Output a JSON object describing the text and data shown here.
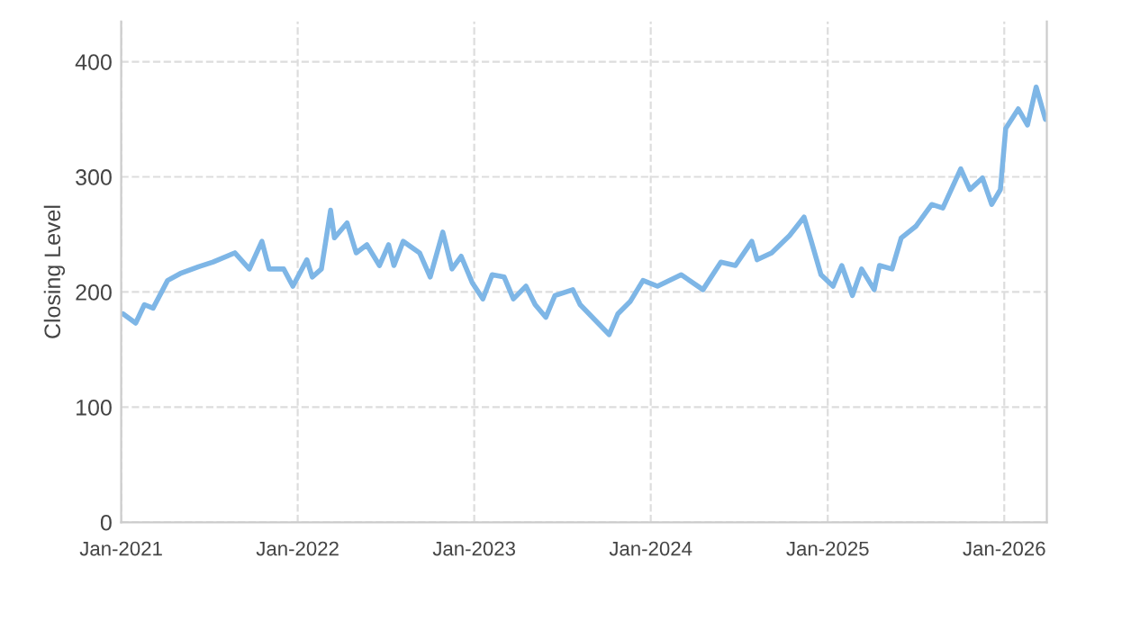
{
  "chart_data": {
    "type": "line",
    "ylabel": "Closing Level",
    "x": [
      "2021-01-05",
      "2021-01-31",
      "2021-02-18",
      "2021-03-08",
      "2021-04-07",
      "2021-05-03",
      "2021-06-10",
      "2021-07-10",
      "2021-08-24",
      "2021-09-23",
      "2021-10-19",
      "2021-11-03",
      "2021-12-03",
      "2021-12-22",
      "2022-01-20",
      "2022-01-31",
      "2022-02-19",
      "2022-03-10",
      "2022-03-18",
      "2022-04-13",
      "2022-05-02",
      "2022-05-24",
      "2022-06-19",
      "2022-07-08",
      "2022-07-19",
      "2022-08-07",
      "2022-09-10",
      "2022-10-02",
      "2022-10-28",
      "2022-11-16",
      "2022-12-05",
      "2022-12-28",
      "2023-01-19",
      "2023-02-07",
      "2023-03-04",
      "2023-03-23",
      "2023-04-18",
      "2023-05-07",
      "2023-05-29",
      "2023-06-17",
      "2023-07-24",
      "2023-08-08",
      "2023-09-14",
      "2023-10-07",
      "2023-10-25",
      "2023-11-20",
      "2023-12-16",
      "2024-01-15",
      "2024-03-04",
      "2024-04-18",
      "2024-05-25",
      "2024-06-24",
      "2024-07-28",
      "2024-08-08",
      "2024-09-07",
      "2024-10-14",
      "2024-11-13",
      "2024-11-28",
      "2024-12-18",
      "2025-01-12",
      "2025-01-30",
      "2025-02-21",
      "2025-03-12",
      "2025-04-07",
      "2025-04-18",
      "2025-05-14",
      "2025-06-02",
      "2025-07-02",
      "2025-08-04",
      "2025-08-27",
      "2025-10-03",
      "2025-10-22",
      "2025-11-17",
      "2025-12-06",
      "2025-12-24",
      "2026-01-04",
      "2026-01-30",
      "2026-02-18",
      "2026-03-08",
      "2026-03-27"
    ],
    "series": [
      {
        "color": "#7eb6e6",
        "values": [
          181,
          173,
          189,
          186,
          210,
          216,
          222,
          226,
          234,
          220,
          244,
          220,
          220,
          205,
          228,
          213,
          220,
          271,
          247,
          260,
          234,
          241,
          223,
          241,
          223,
          244,
          234,
          213,
          252,
          220,
          231,
          208,
          194,
          215,
          213,
          194,
          205,
          189,
          178,
          197,
          202,
          189,
          173,
          163,
          181,
          192,
          210,
          205,
          215,
          202,
          226,
          223,
          244,
          228,
          234,
          249,
          265,
          244,
          215,
          205,
          223,
          197,
          220,
          202,
          223,
          220,
          247,
          257,
          276,
          273,
          307,
          289,
          299,
          276,
          289,
          342,
          359,
          345,
          378,
          350
        ]
      }
    ],
    "xlim": [
      "2021-01-01",
      "2026-03-30"
    ],
    "xticks": [
      {
        "value": "2021-01-01",
        "label": "Jan-2021"
      },
      {
        "value": "2022-01-01",
        "label": "Jan-2022"
      },
      {
        "value": "2023-01-01",
        "label": "Jan-2023"
      },
      {
        "value": "2024-01-01",
        "label": "Jan-2024"
      },
      {
        "value": "2025-01-01",
        "label": "Jan-2025"
      },
      {
        "value": "2026-01-01",
        "label": "Jan-2026"
      }
    ],
    "ylim": [
      0,
      435
    ],
    "yticks": [
      0,
      100,
      200,
      300,
      400
    ],
    "grid": true,
    "legend": false,
    "marker": "none",
    "line_style": "solid"
  }
}
